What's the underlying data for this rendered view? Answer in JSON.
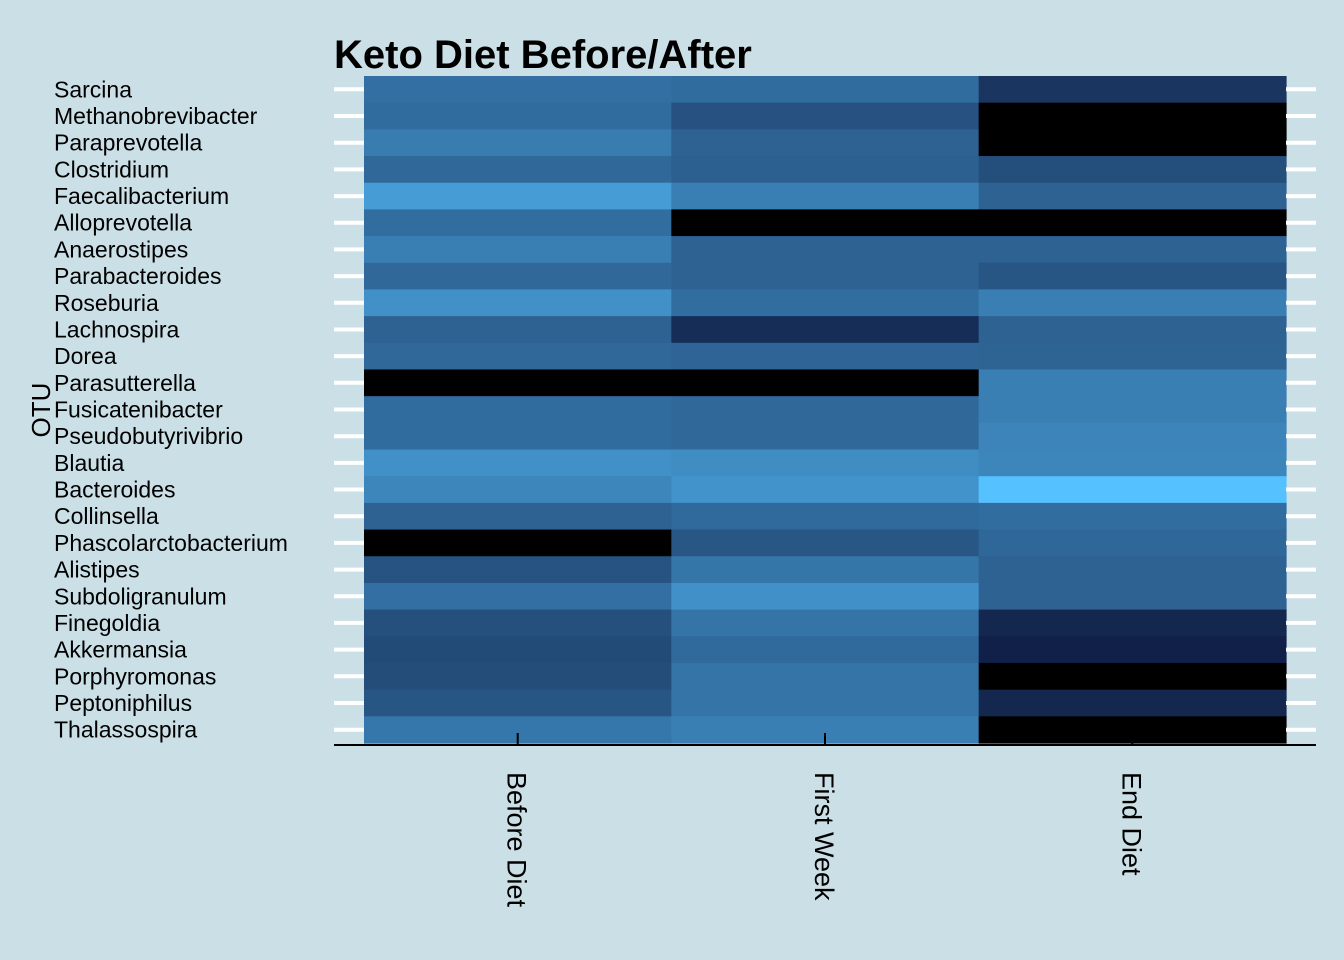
{
  "chart_data": {
    "type": "heatmap",
    "title": "Keto Diet Before/After",
    "ylabel": "OTU",
    "xlabel": "",
    "categories": [
      "Before Diet",
      "First Week",
      "End Diet"
    ],
    "rows": [
      "Sarcina",
      "Methanobrevibacter",
      "Paraprevotella",
      "Clostridium",
      "Faecalibacterium",
      "Alloprevotella",
      "Anaerostipes",
      "Parabacteroides",
      "Roseburia",
      "Lachnospira",
      "Dorea",
      "Parasutterella",
      "Fusicatenibacter",
      "Pseudobutyrivibrio",
      "Blautia",
      "Bacteroides",
      "Collinsella",
      "Phascolarctobacterium",
      "Alistipes",
      "Subdoligranulum",
      "Finegoldia",
      "Akkermansia",
      "Porphyromonas",
      "Peptoniphilus",
      "Thalassospira"
    ],
    "values": [
      [
        0.5,
        0.48,
        0.15
      ],
      [
        0.48,
        0.32,
        null
      ],
      [
        0.58,
        0.42,
        null
      ],
      [
        0.46,
        0.41,
        0.3
      ],
      [
        0.78,
        0.6,
        0.42
      ],
      [
        0.49,
        null,
        null
      ],
      [
        0.6,
        0.42,
        0.42
      ],
      [
        0.46,
        0.42,
        0.34
      ],
      [
        0.7,
        0.49,
        0.6
      ],
      [
        0.42,
        0.1,
        0.42
      ],
      [
        0.46,
        0.44,
        0.43
      ],
      [
        null,
        null,
        0.6
      ],
      [
        0.48,
        0.46,
        0.6
      ],
      [
        0.48,
        0.46,
        0.63
      ],
      [
        0.7,
        0.68,
        0.64
      ],
      [
        0.64,
        0.72,
        1.0
      ],
      [
        0.42,
        0.47,
        0.49
      ],
      [
        null,
        0.35,
        0.45
      ],
      [
        0.33,
        0.54,
        0.42
      ],
      [
        0.5,
        0.7,
        0.42
      ],
      [
        0.31,
        0.53,
        0.06
      ],
      [
        0.28,
        0.47,
        0.02
      ],
      [
        0.29,
        0.53,
        null
      ],
      [
        0.34,
        0.53,
        0.06
      ],
      [
        0.55,
        0.6,
        null
      ]
    ],
    "color_scale": {
      "low": "#0f1d44",
      "high": "#56c1ff",
      "missing": "#000000"
    },
    "grid": false
  },
  "colors": {
    "background": "#cbdfe6",
    "tick_marks": "#ffffff"
  }
}
